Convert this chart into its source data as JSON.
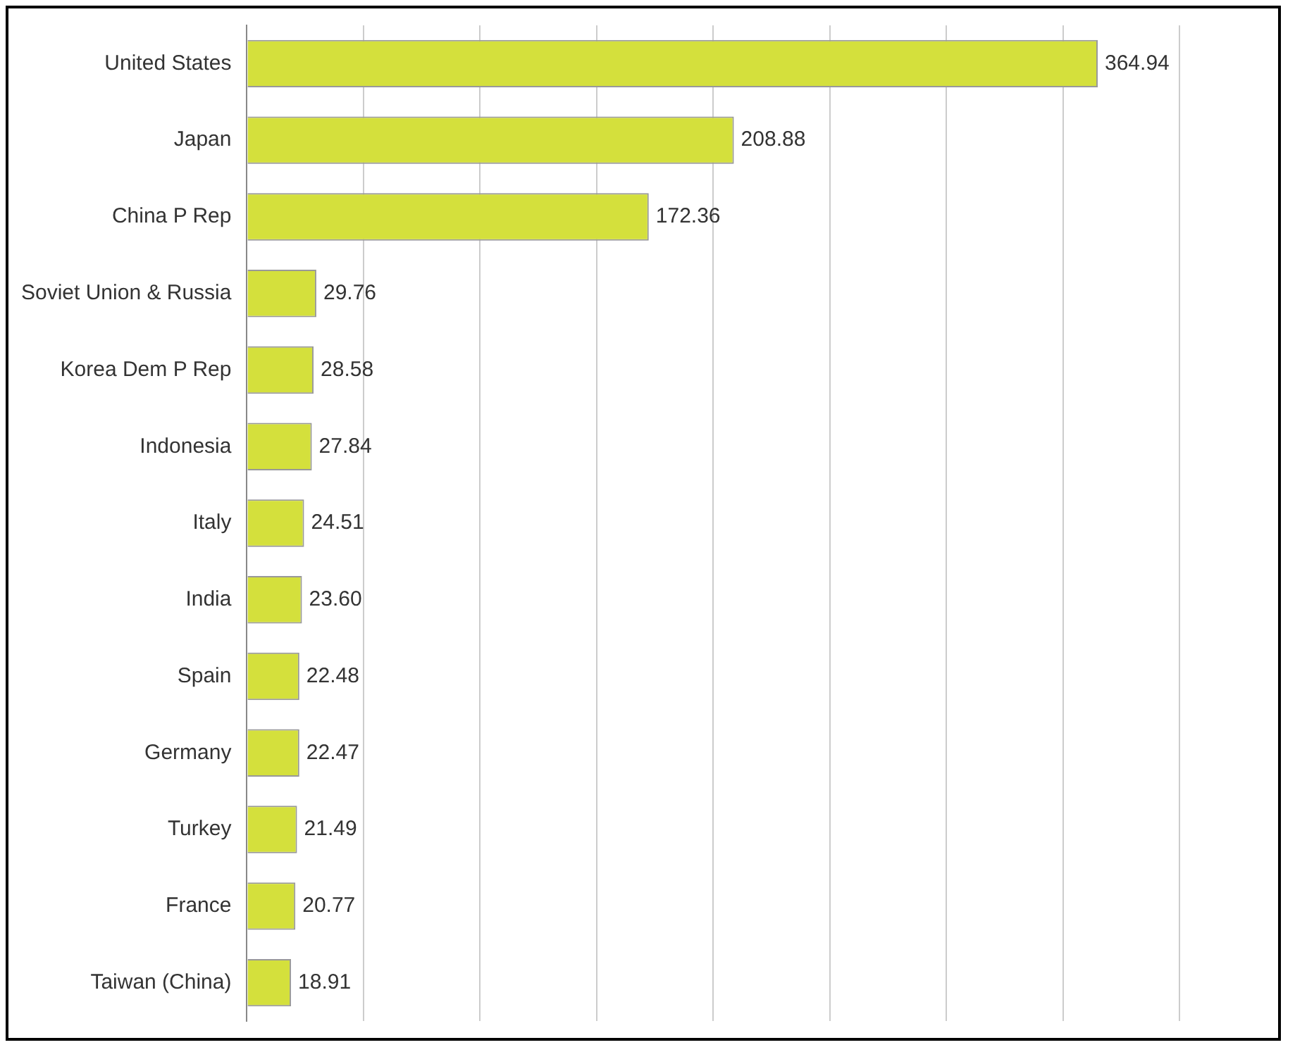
{
  "chart_data": {
    "type": "bar",
    "orientation": "horizontal",
    "categories": [
      "United States",
      "Japan",
      "China P Rep",
      "Soviet Union & Russia",
      "Korea Dem P Rep",
      "Indonesia",
      "Italy",
      "India",
      "Spain",
      "Germany",
      "Turkey",
      "France",
      "Taiwan (China)"
    ],
    "values": [
      364.94,
      208.88,
      172.36,
      29.76,
      28.58,
      27.84,
      24.51,
      23.6,
      22.48,
      22.47,
      21.49,
      20.77,
      18.91
    ],
    "value_labels": [
      "364.94",
      "208.88",
      "172.36",
      "29.76",
      "28.58",
      "27.84",
      "24.51",
      "23.60",
      "22.48",
      "22.47",
      "21.49",
      "20.77",
      "18.91"
    ],
    "color": "#d4e03c",
    "xlim": [
      0,
      400
    ],
    "xticks": [
      {
        "value": 0,
        "label": null
      },
      {
        "value": 50,
        "label": null
      },
      {
        "value": 100,
        "label": null
      },
      {
        "value": 150,
        "label": null
      },
      {
        "value": 200,
        "label": null
      },
      {
        "value": 250,
        "label": null
      },
      {
        "value": 300,
        "label": null
      },
      {
        "value": 350,
        "label": null
      },
      {
        "value": 400,
        "label": null
      }
    ],
    "tick_labels": "y",
    "grid": "x",
    "legend": false
  }
}
